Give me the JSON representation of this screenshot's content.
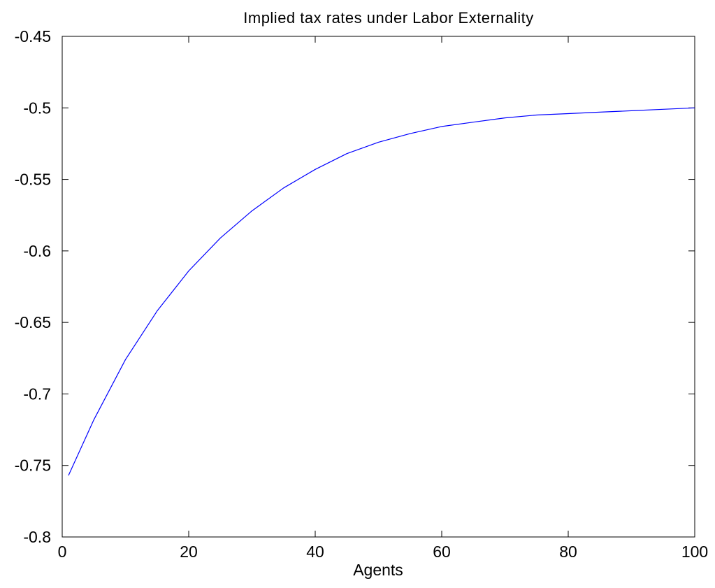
{
  "chart_data": {
    "type": "line",
    "title": "Implied tax rates under Labor Externality",
    "xlabel": "Agents",
    "ylabel": "",
    "xlim": [
      0,
      100
    ],
    "ylim": [
      -0.8,
      -0.45
    ],
    "xticks": [
      0,
      20,
      40,
      60,
      80,
      100
    ],
    "xtick_labels": [
      "0",
      "20",
      "40",
      "60",
      "80",
      "100"
    ],
    "yticks": [
      -0.45,
      -0.5,
      -0.55,
      -0.6,
      -0.65,
      -0.7,
      -0.75,
      -0.8
    ],
    "ytick_labels": [
      "-0.45",
      "-0.5",
      "-0.55",
      "-0.6",
      "-0.65",
      "-0.7",
      "-0.75",
      "-0.8"
    ],
    "grid": false,
    "legend": "none",
    "series": [
      {
        "color": "#0000ff",
        "x": [
          1,
          5,
          10,
          15,
          20,
          25,
          30,
          35,
          40,
          45,
          50,
          55,
          60,
          65,
          70,
          75,
          80,
          85,
          90,
          95,
          100
        ],
        "y": [
          -0.757,
          -0.718,
          -0.676,
          -0.642,
          -0.614,
          -0.591,
          -0.572,
          -0.556,
          -0.543,
          -0.532,
          -0.524,
          -0.518,
          -0.513,
          -0.51,
          -0.507,
          -0.505,
          -0.504,
          -0.503,
          -0.502,
          -0.501,
          -0.5
        ]
      }
    ]
  }
}
